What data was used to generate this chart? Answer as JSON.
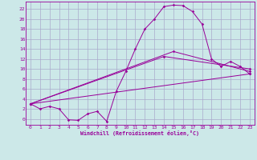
{
  "xlabel": "Windchill (Refroidissement éolien,°C)",
  "background_color": "#cce8e8",
  "grid_color": "#aaaacc",
  "line_color": "#990099",
  "xlim": [
    -0.5,
    23.5
  ],
  "ylim": [
    -1.2,
    23.5
  ],
  "xticks": [
    0,
    1,
    2,
    3,
    4,
    5,
    6,
    7,
    8,
    9,
    10,
    11,
    12,
    13,
    14,
    15,
    16,
    17,
    18,
    19,
    20,
    21,
    22,
    23
  ],
  "yticks": [
    0,
    2,
    4,
    6,
    8,
    10,
    12,
    14,
    16,
    18,
    20,
    22
  ],
  "line1_x": [
    0,
    1,
    2,
    3,
    4,
    5,
    6,
    7,
    8,
    9,
    10,
    11,
    12,
    13,
    14,
    15,
    16,
    17,
    18,
    19,
    20,
    21,
    22,
    23
  ],
  "line1_y": [
    3,
    2,
    2.5,
    2,
    -0.2,
    -0.3,
    1,
    1.5,
    -0.5,
    5.5,
    9.5,
    14,
    18,
    20,
    22.5,
    22.8,
    22.7,
    21.5,
    19,
    12,
    10.5,
    11.5,
    10.5,
    9
  ],
  "line2_x": [
    0,
    23
  ],
  "line2_y": [
    3,
    9
  ],
  "line3_x": [
    0,
    14,
    23
  ],
  "line3_y": [
    3,
    12.5,
    10
  ],
  "line4_x": [
    0,
    15,
    23
  ],
  "line4_y": [
    3,
    13.5,
    9.5
  ]
}
